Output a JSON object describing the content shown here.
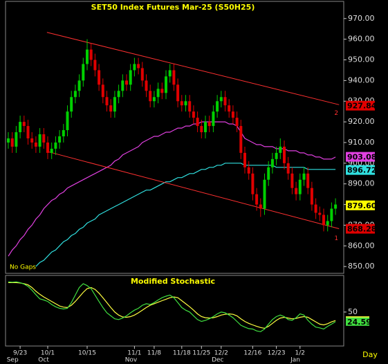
{
  "chart_data": [
    {
      "type": "candlestick",
      "title": "SET50 Index Futures Mar-25 (S50H25)",
      "annotation": "No Gaps",
      "ylim": [
        846.7,
        978.3
      ],
      "yticks": [
        {
          "value": 850,
          "label": "850.00"
        },
        {
          "value": 860,
          "label": "860.00"
        },
        {
          "value": 870,
          "label": "870.00"
        },
        {
          "value": 880,
          "label": "880.00"
        },
        {
          "value": 890,
          "label": "890.00"
        },
        {
          "value": 900,
          "label": "900.00"
        },
        {
          "value": 910,
          "label": "910.00"
        },
        {
          "value": 920,
          "label": "920.00"
        },
        {
          "value": 930,
          "label": "930.00"
        },
        {
          "value": 940,
          "label": "940.00"
        },
        {
          "value": 950,
          "label": "950.00"
        },
        {
          "value": 960,
          "label": "960.00"
        },
        {
          "value": 970,
          "label": "970.00"
        }
      ],
      "up_color": "#00d000",
      "down_color": "#e00000",
      "open": [
        910,
        912,
        908,
        915,
        920,
        918,
        912,
        910,
        908,
        914,
        910,
        905,
        907,
        910,
        913,
        916,
        925,
        932,
        935,
        940,
        948,
        955,
        950,
        945,
        938,
        932,
        928,
        925,
        932,
        935,
        940,
        938,
        945,
        948,
        946,
        940,
        935,
        930,
        932,
        936,
        934,
        942,
        945,
        938,
        930,
        928,
        930,
        925,
        922,
        918,
        915,
        920,
        918,
        925,
        930,
        932,
        928,
        925,
        922,
        918,
        905,
        898,
        895,
        885,
        880,
        878,
        892,
        898,
        902,
        905,
        908,
        900,
        895,
        888,
        885,
        892,
        895,
        888,
        880,
        876,
        875,
        870,
        872,
        878
      ],
      "high": [
        915,
        915,
        918,
        923,
        923,
        921,
        915,
        913,
        917,
        917,
        913,
        910,
        913,
        916,
        919,
        928,
        935,
        938,
        943,
        951,
        960,
        958,
        953,
        948,
        941,
        935,
        931,
        935,
        938,
        943,
        943,
        948,
        951,
        951,
        949,
        943,
        938,
        935,
        939,
        939,
        945,
        948,
        948,
        941,
        933,
        933,
        933,
        928,
        925,
        921,
        923,
        923,
        928,
        933,
        935,
        935,
        931,
        928,
        925,
        921,
        908,
        901,
        898,
        888,
        883,
        895,
        901,
        905,
        908,
        912,
        911,
        903,
        898,
        891,
        895,
        898,
        898,
        891,
        883,
        879,
        878,
        875,
        881,
        883
      ],
      "low": [
        907,
        905,
        905,
        912,
        915,
        909,
        907,
        905,
        905,
        907,
        902,
        902,
        904,
        907,
        910,
        913,
        922,
        929,
        932,
        937,
        945,
        947,
        942,
        935,
        929,
        925,
        922,
        922,
        929,
        932,
        935,
        935,
        942,
        943,
        937,
        932,
        927,
        927,
        929,
        931,
        931,
        939,
        935,
        927,
        925,
        925,
        922,
        919,
        915,
        912,
        912,
        915,
        915,
        922,
        927,
        925,
        922,
        919,
        915,
        902,
        895,
        892,
        882,
        877,
        874,
        875,
        889,
        895,
        899,
        902,
        897,
        892,
        885,
        882,
        882,
        889,
        885,
        877,
        873,
        872,
        867,
        867,
        869,
        875
      ],
      "close": [
        912,
        908,
        915,
        920,
        918,
        912,
        910,
        908,
        914,
        910,
        905,
        907,
        910,
        913,
        916,
        925,
        932,
        935,
        940,
        948,
        955,
        950,
        945,
        938,
        932,
        928,
        925,
        932,
        935,
        940,
        938,
        945,
        948,
        946,
        940,
        935,
        930,
        932,
        936,
        934,
        942,
        945,
        938,
        930,
        928,
        930,
        925,
        922,
        918,
        915,
        920,
        918,
        925,
        930,
        932,
        928,
        925,
        922,
        918,
        905,
        898,
        895,
        885,
        880,
        878,
        892,
        898,
        902,
        905,
        908,
        900,
        895,
        888,
        885,
        892,
        895,
        888,
        880,
        876,
        875,
        870,
        872,
        878,
        880
      ],
      "series": [
        {
          "color": "#e040e0",
          "values": [
            855,
            858,
            860,
            863,
            865,
            868,
            870,
            873,
            875,
            878,
            880,
            882,
            883,
            885,
            886,
            888,
            889,
            890,
            891,
            892,
            893,
            894,
            895,
            896,
            897,
            898,
            899,
            901,
            902,
            904,
            905,
            906,
            907,
            908,
            910,
            911,
            912,
            913,
            913,
            914,
            915,
            915,
            916,
            917,
            917,
            918,
            918,
            919,
            919,
            920,
            920,
            920,
            920,
            920,
            920,
            920,
            919,
            919,
            918,
            915,
            912,
            911,
            910,
            909,
            909,
            908,
            908,
            908,
            907,
            907,
            907,
            906,
            906,
            906,
            905,
            905,
            904,
            904,
            903,
            903,
            902,
            902,
            902,
            903
          ]
        },
        {
          "color": "#30e0e0",
          "values": [
            null,
            null,
            null,
            null,
            null,
            null,
            null,
            850,
            852,
            853,
            855,
            857,
            858,
            860,
            862,
            863,
            865,
            866,
            868,
            869,
            871,
            872,
            873,
            875,
            876,
            877,
            878,
            879,
            880,
            881,
            882,
            883,
            884,
            885,
            886,
            887,
            887,
            888,
            889,
            890,
            891,
            891,
            892,
            893,
            893,
            894,
            895,
            895,
            896,
            897,
            897,
            898,
            898,
            899,
            899,
            900,
            900,
            900,
            900,
            900,
            899,
            899,
            899,
            899,
            899,
            899,
            899,
            899,
            898,
            898,
            898,
            898,
            898,
            898,
            898,
            898,
            897,
            897,
            897,
            897,
            897,
            897,
            897,
            897
          ]
        }
      ],
      "trendlines": [
        {
          "x": [
            9.8,
            83.9
          ],
          "values": [
            963.3,
            928.3
          ],
          "color": "#ff3030",
          "label": "2"
        },
        {
          "x": [
            9.8,
            83.9
          ],
          "values": [
            905.7,
            868.3
          ],
          "color": "#ff3030",
          "label": "1"
        }
      ],
      "price_markers": [
        {
          "value": 927.84,
          "color": "#e00000"
        },
        {
          "value": 903.08,
          "color": "#e040e0"
        },
        {
          "value": 896.72,
          "color": "#30e0e0"
        },
        {
          "value": 879.6,
          "label": "879.60",
          "color": "#ffff00"
        },
        {
          "value": 868.28,
          "color": "#e00000"
        }
      ]
    },
    {
      "type": "line",
      "title": "Modified Stochastic",
      "xlabel": "Day",
      "ylim": [
        -40,
        147
      ],
      "yticks": [
        50
      ],
      "categories": [
        null,
        null,
        null,
        "9/23",
        null,
        null,
        null,
        null,
        null,
        null,
        "10/1",
        null,
        null,
        null,
        null,
        null,
        null,
        null,
        null,
        null,
        "10/15",
        null,
        null,
        null,
        null,
        null,
        null,
        null,
        null,
        null,
        null,
        null,
        "11/1",
        null,
        null,
        null,
        null,
        "11/8",
        null,
        null,
        null,
        null,
        null,
        null,
        "11/18",
        null,
        null,
        null,
        null,
        "11/25",
        null,
        null,
        null,
        null,
        "12/2",
        null,
        null,
        null,
        null,
        null,
        null,
        null,
        "12/16",
        null,
        null,
        null,
        null,
        null,
        "12/23",
        null,
        null,
        null,
        null,
        null,
        "1/2",
        null,
        null,
        null,
        null,
        null,
        null,
        null,
        null,
        null
      ],
      "months": [
        null,
        "Sep",
        null,
        null,
        null,
        null,
        null,
        null,
        null,
        "Oct",
        null,
        null,
        null,
        null,
        null,
        null,
        null,
        null,
        null,
        null,
        null,
        null,
        null,
        null,
        null,
        null,
        null,
        null,
        null,
        null,
        null,
        "Nov",
        null,
        null,
        null,
        null,
        null,
        null,
        null,
        null,
        null,
        null,
        null,
        null,
        null,
        null,
        null,
        null,
        null,
        null,
        null,
        null,
        null,
        "Dec",
        null,
        null,
        null,
        null,
        null,
        null,
        null,
        null,
        null,
        null,
        null,
        null,
        null,
        null,
        null,
        null,
        null,
        null,
        null,
        "Jan",
        null,
        null,
        null,
        null,
        null,
        null,
        null,
        null,
        null,
        null
      ],
      "series": [
        {
          "color": "#ffff40",
          "values": [
            128,
            128,
            128,
            127,
            125,
            122,
            115,
            105,
            97,
            90,
            84,
            78,
            72,
            66,
            63,
            62,
            68,
            78,
            90,
            102,
            112,
            115,
            110,
            100,
            88,
            75,
            62,
            50,
            42,
            37,
            36,
            38,
            42,
            48,
            55,
            62,
            68,
            72,
            76,
            80,
            84,
            88,
            90,
            88,
            80,
            72,
            64,
            55,
            45,
            38,
            35,
            34,
            35,
            38,
            42,
            44,
            45,
            44,
            40,
            32,
            25,
            20,
            16,
            12,
            9,
            7,
            12,
            20,
            28,
            34,
            36,
            34,
            32,
            33,
            36,
            38,
            36,
            30,
            24,
            18,
            16,
            19,
            24,
            27.55
          ]
        },
        {
          "color": "#40e040",
          "values": [
            130,
            129,
            130,
            128,
            124,
            118,
            108,
            96,
            85,
            82,
            78,
            70,
            64,
            60,
            58,
            60,
            75,
            95,
            115,
            125,
            120,
            112,
            95,
            78,
            62,
            48,
            40,
            32,
            30,
            34,
            40,
            48,
            55,
            60,
            68,
            72,
            70,
            75,
            82,
            88,
            92,
            95,
            88,
            75,
            62,
            55,
            50,
            40,
            30,
            25,
            28,
            32,
            38,
            45,
            50,
            48,
            42,
            35,
            25,
            15,
            10,
            6,
            5,
            0,
            -2,
            5,
            18,
            30,
            38,
            42,
            38,
            30,
            28,
            35,
            45,
            42,
            28,
            18,
            10,
            8,
            5,
            12,
            18,
            24.59
          ]
        }
      ]
    }
  ]
}
